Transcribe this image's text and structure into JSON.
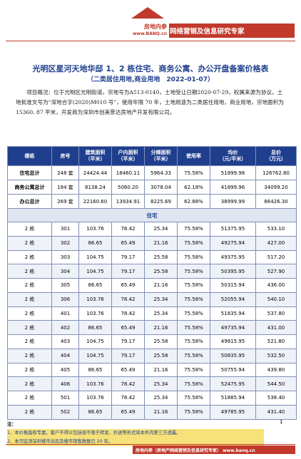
{
  "header": {
    "logo_name": "房地内参",
    "logo_url": "www.BANQ.cn",
    "banner": "网络营销及信息研究专家",
    "accent_color": "#c0392b"
  },
  "title": "光明区星河天地华邸 1、2 栋住宅、商务公寓、办公开盘备案价格表",
  "subtitle": "（二类居住用地,商业用地　2022-01-07）",
  "intro": "项目概况：位于光明区光明街道，宗地号为A513-0140，土地受让日期2020-07-29，权属来源为协议，土地批准文号为“深地合字(2020)M010 号”，使用年限 70 年，土地用途为二类居住用地，商业用地，宗地面积为 15360. 87 平米，开发商为深圳市创美景达房地产开发有限公司。",
  "table": {
    "headers": [
      "楼栋",
      "房号",
      "建筑面积\n（平米）",
      "户内面积\n（平米）",
      "分摊面积\n（平米）",
      "使用率",
      "均价\n（元/平米）",
      "总价\n（万元）"
    ],
    "summary": [
      {
        "label": "住宅总计",
        "rooms": "248 套",
        "area": "24424.44",
        "inner": "18460.11",
        "shared": "5964.33",
        "rate": "75.58%",
        "avg": "51899.98",
        "total": "126762.80"
      },
      {
        "label": "商务公寓总计",
        "rooms": "184 套",
        "area": "8138.24",
        "inner": "5060.20",
        "shared": "3078.04",
        "rate": "62.18%",
        "avg": "41899.96",
        "total": "34099.20"
      },
      {
        "label": "办公总计",
        "rooms": "269 套",
        "area": "22160.60",
        "inner": "13934.91",
        "shared": "8225.69",
        "rate": "62.88%",
        "avg": "38999.99",
        "total": "86426.30"
      }
    ],
    "section_label": "住宅",
    "rows": [
      {
        "bld": "2 栋",
        "room": "301",
        "area": "103.76",
        "inner": "78.42",
        "shared": "25.34",
        "rate": "75.58%",
        "avg": "51375.95",
        "total": "533.10"
      },
      {
        "bld": "2 栋",
        "room": "302",
        "area": "86.65",
        "inner": "65.49",
        "shared": "21.16",
        "rate": "75.58%",
        "avg": "49275.94",
        "total": "427.00"
      },
      {
        "bld": "2 栋",
        "room": "303",
        "area": "104.75",
        "inner": "79.17",
        "shared": "25.58",
        "rate": "75.58%",
        "avg": "49375.95",
        "total": "517.20"
      },
      {
        "bld": "2 栋",
        "room": "304",
        "area": "104.75",
        "inner": "79.17",
        "shared": "25.58",
        "rate": "75.58%",
        "avg": "50395.95",
        "total": "527.90"
      },
      {
        "bld": "2 栋",
        "room": "305",
        "area": "86.65",
        "inner": "65.49",
        "shared": "21.16",
        "rate": "75.58%",
        "avg": "50315.94",
        "total": "436.00"
      },
      {
        "bld": "2 栋",
        "room": "306",
        "area": "103.76",
        "inner": "78.42",
        "shared": "25.34",
        "rate": "75.58%",
        "avg": "52055.94",
        "total": "540.10"
      },
      {
        "bld": "2 栋",
        "room": "401",
        "area": "103.76",
        "inner": "78.42",
        "shared": "25.34",
        "rate": "75.58%",
        "avg": "51835.94",
        "total": "537.80"
      },
      {
        "bld": "2 栋",
        "room": "402",
        "area": "86.65",
        "inner": "65.49",
        "shared": "21.16",
        "rate": "75.58%",
        "avg": "49735.94",
        "total": "431.00"
      },
      {
        "bld": "2 栋",
        "room": "403",
        "area": "104.75",
        "inner": "79.17",
        "shared": "25.58",
        "rate": "75.58%",
        "avg": "49815.95",
        "total": "521.80"
      },
      {
        "bld": "2 栋",
        "room": "404",
        "area": "104.75",
        "inner": "79.17",
        "shared": "25.58",
        "rate": "75.58%",
        "avg": "50835.95",
        "total": "532.50"
      },
      {
        "bld": "2 栋",
        "room": "405",
        "area": "86.65",
        "inner": "65.49",
        "shared": "21.16",
        "rate": "75.58%",
        "avg": "50755.94",
        "total": "439.80"
      },
      {
        "bld": "2 栋",
        "room": "406",
        "area": "103.76",
        "inner": "78.42",
        "shared": "25.34",
        "rate": "75.58%",
        "avg": "52475.95",
        "total": "544.50"
      },
      {
        "bld": "2 栋",
        "room": "501",
        "area": "103.76",
        "inner": "78.42",
        "shared": "25.34",
        "rate": "75.58%",
        "avg": "51885.94",
        "total": "538.40"
      },
      {
        "bld": "2 栋",
        "room": "502",
        "area": "86.65",
        "inner": "65.49",
        "shared": "21.16",
        "rate": "75.58%",
        "avg": "49785.95",
        "total": "431.40"
      }
    ]
  },
  "page_number": "1",
  "notes": {
    "heading": "注：",
    "items": [
      "1、本价格版权专属，客户不得以包括但不限于转发、抄送等形式将本件内第三方透露。",
      "2、本司监测深圳楼市动态及楼市销售数据已 20 年。"
    ]
  },
  "footer": "房地内参（房地产网络营销及信息研究专家） www.banq.cn"
}
